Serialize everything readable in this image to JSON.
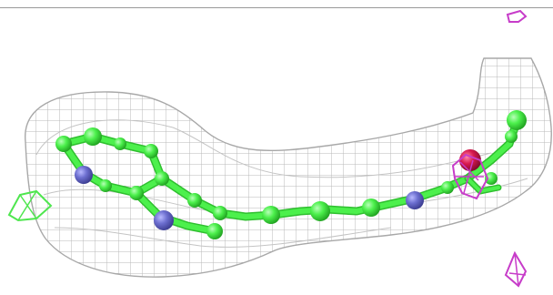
{
  "image": {
    "kind": "molecular-density-render",
    "description_visible_text": ""
  },
  "colors": {
    "background": "#ffffff",
    "mesh": "#b9b9b9",
    "carbon": "#4cf04c",
    "carbon_dark": "#2fbf2f",
    "nitrogen": "#6d6fd0",
    "oxygen": "#d8194f",
    "difference_density_positive": "#c73cc9",
    "difference_density_green": "#4fe64f"
  },
  "icons": [
    "density-mesh",
    "ligand-stick-model",
    "difference-density-blob"
  ]
}
